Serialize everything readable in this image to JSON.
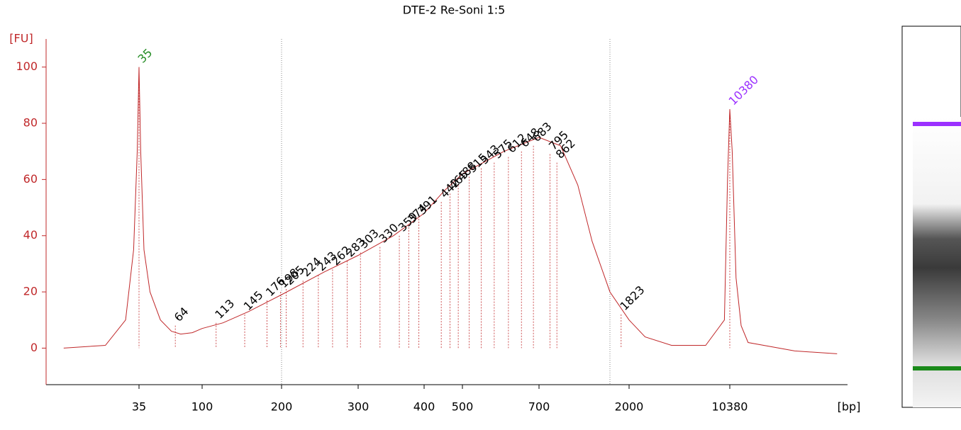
{
  "chart_data": {
    "type": "line",
    "title": "DTE-2 Re-Soni 1:5",
    "ylabel": "[FU]",
    "xlabel": "[bp]",
    "ylim": [
      -13,
      110
    ],
    "yticks": [
      0,
      20,
      40,
      60,
      80,
      100
    ],
    "xticks": [
      35,
      100,
      200,
      300,
      400,
      500,
      700,
      2000,
      10380
    ],
    "color": "#c0282a",
    "series": [
      {
        "name": "DTE-2 Re-Soni 1:5",
        "color": "#c0282a",
        "x": [
          10,
          20,
          28,
          32,
          34,
          35,
          36,
          38,
          42,
          50,
          60,
          70,
          85,
          100,
          120,
          150,
          200,
          250,
          300,
          350,
          400,
          450,
          500,
          600,
          700,
          900,
          1100,
          1300,
          1600,
          2000,
          2600,
          4000,
          7000,
          9500,
          10000,
          10380,
          10800,
          11500,
          12500,
          14000,
          30000,
          60000
        ],
        "values": [
          0,
          1,
          10,
          35,
          70,
          100,
          70,
          35,
          20,
          10,
          6,
          5,
          5.5,
          7,
          9,
          13,
          19,
          27,
          33,
          40,
          48,
          56,
          62,
          70,
          75,
          72,
          58,
          38,
          20,
          10,
          4,
          1,
          1,
          10,
          60,
          85,
          70,
          25,
          8,
          2,
          -1,
          -2
        ]
      }
    ],
    "peaks": {
      "x": [
        35,
        64,
        113,
        145,
        176,
        198,
        205,
        224,
        243,
        262,
        283,
        303,
        330,
        359,
        374,
        391,
        442,
        465,
        488,
        515,
        543,
        575,
        612,
        648,
        683,
        795,
        862,
        1823,
        10380
      ],
      "values": [
        100,
        8,
        9,
        12,
        17,
        20,
        21,
        24,
        26,
        28,
        31,
        34,
        36,
        40,
        43,
        46,
        52,
        55,
        58,
        61,
        64,
        66,
        68,
        70,
        72,
        69,
        66,
        12,
        85
      ],
      "colors": [
        "#228b22",
        "#000000",
        "#000000",
        "#000000",
        "#000000",
        "#000000",
        "#000000",
        "#000000",
        "#000000",
        "#000000",
        "#000000",
        "#000000",
        "#000000",
        "#000000",
        "#000000",
        "#000000",
        "#000000",
        "#000000",
        "#000000",
        "#000000",
        "#000000",
        "#000000",
        "#000000",
        "#000000",
        "#000000",
        "#000000",
        "#000000",
        "#000000",
        "#9b30ff"
      ]
    }
  }
}
